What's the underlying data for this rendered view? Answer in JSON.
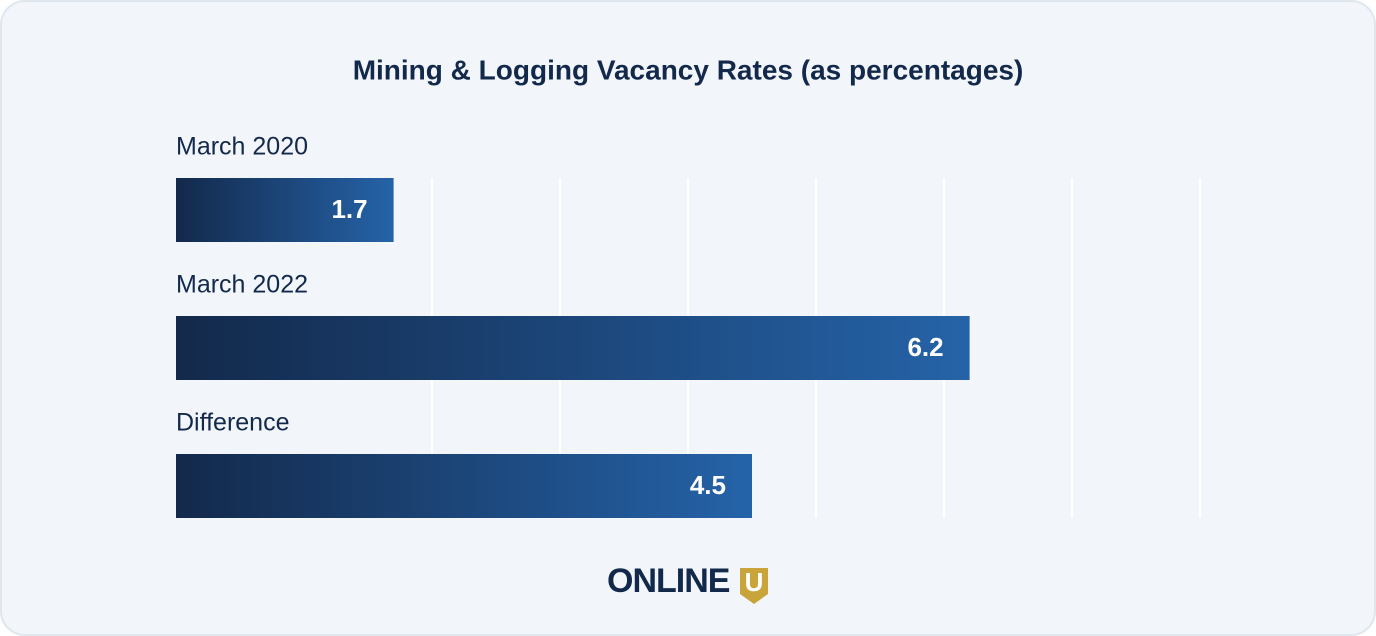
{
  "chart_data": {
    "type": "bar",
    "orientation": "horizontal",
    "title": "Mining & Logging Vacancy Rates (as percentages)",
    "categories": [
      "March 2020",
      "March 2022",
      "Difference"
    ],
    "values": [
      1.7,
      6.2,
      4.5
    ],
    "color": [
      "#13294b",
      "#2563a8"
    ],
    "xlim": [
      0,
      8
    ],
    "xticks": [
      2,
      3,
      4,
      5,
      6,
      7,
      8
    ],
    "grid": true
  },
  "logo": {
    "text": "ONLINE",
    "mark": "U"
  }
}
